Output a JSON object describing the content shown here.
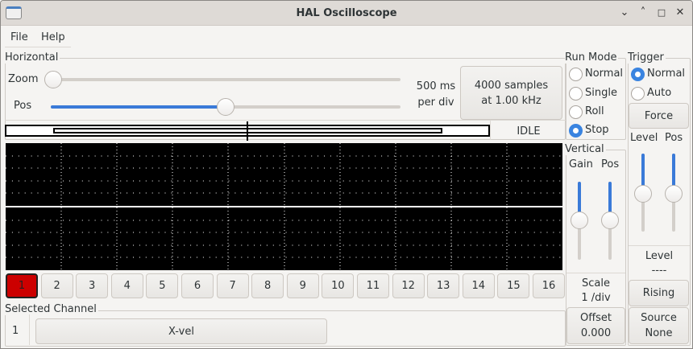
{
  "window": {
    "title": "HAL Oscilloscope",
    "controls": [
      "minimize",
      "maximize",
      "restore",
      "close"
    ]
  },
  "menu": {
    "items": [
      "File",
      "Help"
    ]
  },
  "horizontal": {
    "label": "Horizontal",
    "zoom_label": "Zoom",
    "pos_label": "Pos",
    "zoom_value": 0,
    "pos_value": 0.5,
    "scale_line1": "500 ms",
    "scale_line2": "per div",
    "samples_line1": "4000 samples",
    "samples_line2": "at 1.00 kHz",
    "status": "IDLE"
  },
  "run_mode": {
    "label": "Run Mode",
    "options": [
      "Normal",
      "Single",
      "Roll",
      "Stop"
    ],
    "selected": "Stop"
  },
  "trigger": {
    "label": "Trigger",
    "options": [
      "Normal",
      "Auto"
    ],
    "selected": "Normal",
    "force": "Force",
    "level_label": "Level",
    "pos_label": "Pos",
    "level_value": 0.5,
    "pos_value": 0.5,
    "level_title": "Level",
    "level_readout": "----",
    "edge": "Rising",
    "source_line1": "Source",
    "source_line2": "None"
  },
  "vertical": {
    "label": "Vertical",
    "gain_label": "Gain",
    "pos_label": "Pos",
    "gain_value": 0.5,
    "pos_value": 0.5,
    "scale_title": "Scale",
    "scale_value": "1 /div",
    "offset_line1": "Offset",
    "offset_line2": "0.000"
  },
  "channels": {
    "buttons": [
      "1",
      "2",
      "3",
      "4",
      "5",
      "6",
      "7",
      "8",
      "9",
      "10",
      "11",
      "12",
      "13",
      "14",
      "15",
      "16"
    ],
    "selected": "1",
    "selected_color": "#cc0000"
  },
  "selected_channel": {
    "label": "Selected Channel",
    "number": "1",
    "name": "X-vel"
  }
}
